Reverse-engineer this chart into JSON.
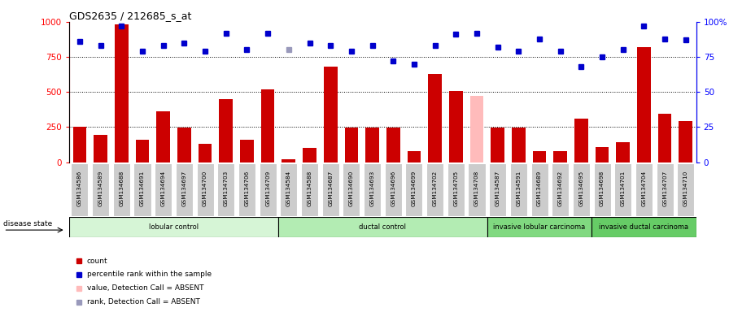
{
  "title": "GDS2635 / 212685_s_at",
  "samples": [
    "GSM134586",
    "GSM134589",
    "GSM134688",
    "GSM134691",
    "GSM134694",
    "GSM134697",
    "GSM134700",
    "GSM134703",
    "GSM134706",
    "GSM134709",
    "GSM134584",
    "GSM134588",
    "GSM134687",
    "GSM134690",
    "GSM134693",
    "GSM134696",
    "GSM134699",
    "GSM134702",
    "GSM134705",
    "GSM134708",
    "GSM134587",
    "GSM134591",
    "GSM134689",
    "GSM134692",
    "GSM134695",
    "GSM134698",
    "GSM134701",
    "GSM134704",
    "GSM134707",
    "GSM134710"
  ],
  "counts": [
    255,
    195,
    980,
    160,
    360,
    245,
    130,
    450,
    160,
    520,
    20,
    100,
    680,
    245,
    245,
    245,
    80,
    630,
    510,
    470,
    245,
    245,
    80,
    80,
    310,
    110,
    140,
    820,
    345,
    295
  ],
  "percentiles": [
    86,
    83,
    97,
    79,
    83,
    85,
    79,
    92,
    80,
    92,
    80,
    85,
    83,
    79,
    83,
    72,
    70,
    83,
    91,
    92,
    82,
    79,
    88,
    79,
    68,
    75,
    80,
    97,
    88,
    87
  ],
  "absent_value_indices": [
    19
  ],
  "absent_rank_indices": [
    10
  ],
  "disease_groups": [
    {
      "label": "lobular control",
      "start": 0,
      "end": 10,
      "color": "#d6f5d6"
    },
    {
      "label": "ductal control",
      "start": 10,
      "end": 20,
      "color": "#b3ecb3"
    },
    {
      "label": "invasive lobular carcinoma",
      "start": 20,
      "end": 25,
      "color": "#80d980"
    },
    {
      "label": "invasive ductal carcinoma",
      "start": 25,
      "end": 30,
      "color": "#66cc66"
    }
  ],
  "bar_color": "#cc0000",
  "dot_color": "#0000cc",
  "absent_value_color": "#ffbbbb",
  "absent_rank_color": "#9999bb",
  "ylim_left": [
    0,
    1000
  ],
  "yticks_left": [
    0,
    250,
    500,
    750,
    1000
  ],
  "yticks_right": [
    0,
    25,
    50,
    75,
    100
  ],
  "yticklabels_left": [
    "0",
    "250",
    "500",
    "750",
    "1000"
  ],
  "yticklabels_right": [
    "0",
    "25",
    "50",
    "75",
    "100%"
  ],
  "bg_color": "#ffffff",
  "plot_bg": "#ffffff",
  "sample_box_bg": "#cccccc"
}
